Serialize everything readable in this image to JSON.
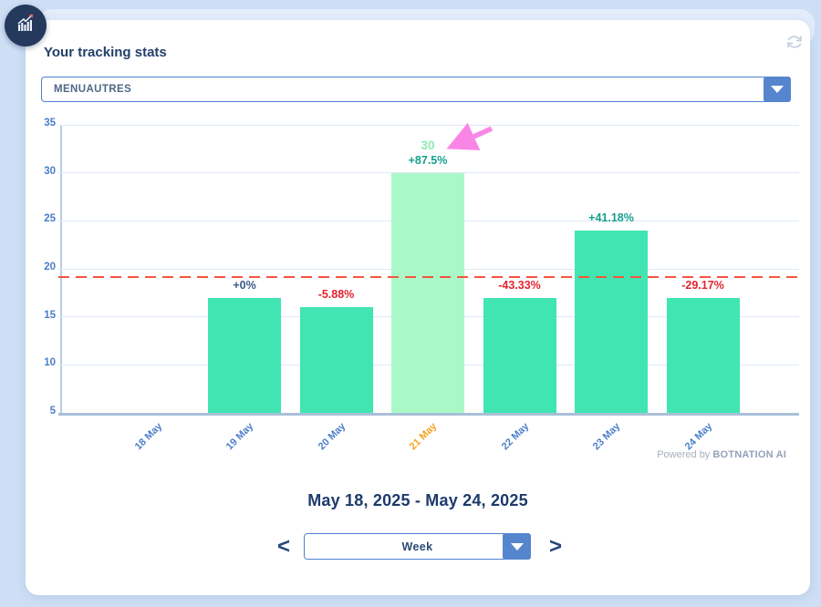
{
  "header": {
    "title": "Your tracking stats"
  },
  "tracking_select": {
    "value": "MENUAUTRES"
  },
  "chart_data": {
    "type": "bar",
    "title": "Your tracking stats",
    "categories": [
      "18 May",
      "19 May",
      "20 May",
      "21 May",
      "22 May",
      "23 May",
      "24 May"
    ],
    "values": [
      null,
      17,
      16,
      30,
      17,
      24,
      17
    ],
    "change_labels": [
      "",
      "+0%",
      "-5.88%",
      "+87.5%",
      "-43.33%",
      "+41.18%",
      "-29.17%"
    ],
    "change_directions": [
      "",
      "neutral",
      "down",
      "up",
      "down",
      "up",
      "down"
    ],
    "highlighted_index": 3,
    "highlighted_value_label": "30",
    "ylim": [
      5,
      35
    ],
    "yticks": [
      5,
      10,
      15,
      20,
      25,
      30,
      35
    ],
    "reference_line": 19.1,
    "grid": true,
    "legend": "none",
    "colors": {
      "bar": "#40e5b2",
      "bar_highlight": "#aaf8c8",
      "up": "#16a08c",
      "down": "#e3242f",
      "neutral": "#3b5c85",
      "axis_label": "#4a7dc9",
      "highlight_tick": "#f6a21e",
      "value_label": "#8feab3",
      "reference": "#f4563d",
      "arrow": "#f986e6",
      "grid": "#dde8f6"
    }
  },
  "powered_by": {
    "prefix": "Powered by",
    "brand": "BOTNATION AI"
  },
  "footer": {
    "date_range": "May 18, 2025 - May 24, 2025",
    "period_select": {
      "value": "Week"
    },
    "prev_label": "<",
    "next_label": ">"
  },
  "icons": {
    "logo": "bar-chart-trend-icon",
    "refresh": "refresh-icon",
    "dropdown": "chevron-down-icon"
  }
}
